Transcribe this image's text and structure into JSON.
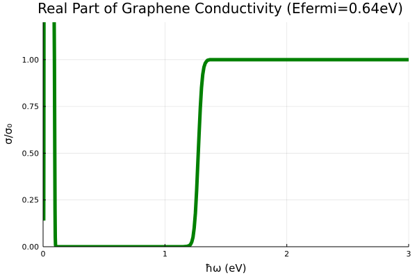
{
  "chart_data": {
    "type": "line",
    "title": "Real Part of Graphene Conductivity (Efermi=0.64eV)",
    "xlabel": "ħω (eV)",
    "ylabel": "σ/σ₀",
    "xlim": [
      0,
      3
    ],
    "ylim": [
      0,
      1.2
    ],
    "x_ticks": [
      0,
      1,
      2,
      3
    ],
    "x_tick_labels": [
      "0",
      "1",
      "2",
      "3"
    ],
    "y_ticks": [
      0,
      0.25,
      0.5,
      0.75,
      1.0
    ],
    "y_tick_labels": [
      "0.00",
      "0.25",
      "0.50",
      "0.75",
      "1.00"
    ],
    "grid": true,
    "legend": "none",
    "series": [
      {
        "color": "#008000",
        "x": [
          0.005,
          0.006,
          0.007,
          0.008,
          0.009,
          0.01,
          0.011,
          0.012,
          0.085,
          0.09,
          0.093,
          0.096,
          0.098,
          0.1,
          0.102,
          0.105,
          0.11,
          0.15,
          0.3,
          0.5,
          0.8,
          1.0,
          1.1,
          1.15,
          1.18,
          1.2,
          1.21,
          1.22,
          1.23,
          1.24,
          1.25,
          1.26,
          1.27,
          1.28,
          1.29,
          1.3,
          1.31,
          1.32,
          1.33,
          1.34,
          1.35,
          1.37,
          1.4,
          1.5,
          2.0,
          2.5,
          3.0
        ],
        "values": [
          0.14,
          0.5,
          1.3,
          1.3,
          1.3,
          1.3,
          1.3,
          1.3,
          1.3,
          1.3,
          1.0,
          0.5,
          0.2,
          0.05,
          0.01,
          0.0,
          0.0,
          0.0,
          0.0,
          0.0,
          0.0,
          0.0,
          0.0,
          0.0,
          0.002,
          0.006,
          0.012,
          0.025,
          0.05,
          0.1,
          0.18,
          0.3,
          0.45,
          0.6,
          0.74,
          0.85,
          0.92,
          0.96,
          0.98,
          0.99,
          0.997,
          1.0,
          1.0,
          1.0,
          1.0,
          1.0,
          1.0
        ]
      }
    ]
  }
}
